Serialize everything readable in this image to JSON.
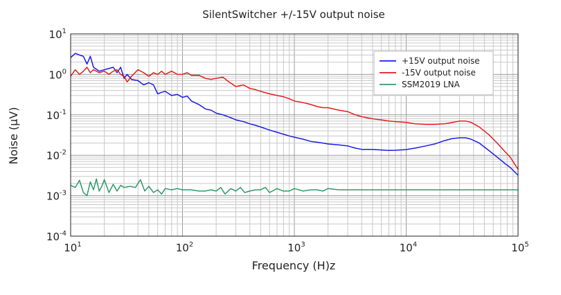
{
  "chart_data": {
    "type": "line",
    "title": "SilentSwitcher +/-15V output noise",
    "xlabel": "Frequency (H)z",
    "ylabel": "Noise (µV)",
    "xscale": "log",
    "yscale": "log",
    "xlim": [
      10,
      100000
    ],
    "ylim": [
      0.0001,
      10
    ],
    "x_tick_labels": [
      {
        "value": 10,
        "base": "10",
        "exp": "1"
      },
      {
        "value": 100,
        "base": "10",
        "exp": "2"
      },
      {
        "value": 1000,
        "base": "10",
        "exp": "3"
      },
      {
        "value": 10000,
        "base": "10",
        "exp": "4"
      },
      {
        "value": 100000,
        "base": "10",
        "exp": "5"
      }
    ],
    "y_tick_labels": [
      {
        "value": 10,
        "base": "10",
        "exp": "1"
      },
      {
        "value": 1,
        "base": "10",
        "exp": "0"
      },
      {
        "value": 0.1,
        "base": "10",
        "exp": "-1"
      },
      {
        "value": 0.01,
        "base": "10",
        "exp": "-2"
      },
      {
        "value": 0.001,
        "base": "10",
        "exp": "-3"
      },
      {
        "value": 0.0001,
        "base": "10",
        "exp": "-4"
      }
    ],
    "grid": true,
    "legend_position": "top-right",
    "series": [
      {
        "name": "+15V output noise",
        "color": "#1a1ae6",
        "points": [
          [
            10,
            2.6
          ],
          [
            11,
            3.3
          ],
          [
            12,
            3.0
          ],
          [
            13,
            2.8
          ],
          [
            14,
            1.8
          ],
          [
            15,
            2.8
          ],
          [
            16,
            1.5
          ],
          [
            18,
            1.2
          ],
          [
            20,
            1.3
          ],
          [
            22,
            1.4
          ],
          [
            24,
            1.5
          ],
          [
            26,
            1.1
          ],
          [
            28,
            1.5
          ],
          [
            30,
            0.8
          ],
          [
            32,
            1.0
          ],
          [
            35,
            0.75
          ],
          [
            40,
            0.7
          ],
          [
            45,
            0.55
          ],
          [
            50,
            0.62
          ],
          [
            55,
            0.55
          ],
          [
            60,
            0.33
          ],
          [
            65,
            0.36
          ],
          [
            70,
            0.38
          ],
          [
            80,
            0.3
          ],
          [
            90,
            0.32
          ],
          [
            100,
            0.27
          ],
          [
            110,
            0.29
          ],
          [
            120,
            0.22
          ],
          [
            140,
            0.18
          ],
          [
            160,
            0.14
          ],
          [
            180,
            0.13
          ],
          [
            200,
            0.11
          ],
          [
            230,
            0.1
          ],
          [
            270,
            0.085
          ],
          [
            300,
            0.075
          ],
          [
            350,
            0.068
          ],
          [
            400,
            0.06
          ],
          [
            450,
            0.055
          ],
          [
            500,
            0.05
          ],
          [
            600,
            0.042
          ],
          [
            700,
            0.037
          ],
          [
            800,
            0.033
          ],
          [
            900,
            0.03
          ],
          [
            1000,
            0.028
          ],
          [
            1200,
            0.025
          ],
          [
            1400,
            0.022
          ],
          [
            1600,
            0.021
          ],
          [
            1800,
            0.02
          ],
          [
            2000,
            0.019
          ],
          [
            2500,
            0.018
          ],
          [
            3000,
            0.017
          ],
          [
            3500,
            0.015
          ],
          [
            4000,
            0.014
          ],
          [
            5000,
            0.014
          ],
          [
            6000,
            0.0135
          ],
          [
            7000,
            0.0132
          ],
          [
            8000,
            0.0133
          ],
          [
            10000,
            0.0138
          ],
          [
            12000,
            0.015
          ],
          [
            15000,
            0.017
          ],
          [
            18000,
            0.019
          ],
          [
            22000,
            0.023
          ],
          [
            26000,
            0.026
          ],
          [
            30000,
            0.027
          ],
          [
            34000,
            0.027
          ],
          [
            38000,
            0.025
          ],
          [
            45000,
            0.02
          ],
          [
            55000,
            0.013
          ],
          [
            65000,
            0.009
          ],
          [
            75000,
            0.0065
          ],
          [
            85000,
            0.005
          ],
          [
            100000,
            0.0032
          ]
        ]
      },
      {
        "name": "-15V output noise",
        "color": "#e61a1a",
        "points": [
          [
            10,
            0.9
          ],
          [
            11,
            1.3
          ],
          [
            12,
            1.0
          ],
          [
            13,
            1.2
          ],
          [
            14,
            1.5
          ],
          [
            15,
            1.1
          ],
          [
            16,
            1.3
          ],
          [
            18,
            1.1
          ],
          [
            20,
            1.2
          ],
          [
            22,
            1.0
          ],
          [
            24,
            1.2
          ],
          [
            26,
            1.3
          ],
          [
            28,
            1.0
          ],
          [
            30,
            0.9
          ],
          [
            32,
            0.65
          ],
          [
            35,
            0.9
          ],
          [
            40,
            1.3
          ],
          [
            45,
            1.1
          ],
          [
            50,
            0.9
          ],
          [
            55,
            1.1
          ],
          [
            60,
            1.0
          ],
          [
            65,
            1.2
          ],
          [
            70,
            1.0
          ],
          [
            80,
            1.2
          ],
          [
            90,
            1.0
          ],
          [
            100,
            1.0
          ],
          [
            110,
            1.1
          ],
          [
            120,
            0.95
          ],
          [
            140,
            0.95
          ],
          [
            160,
            0.8
          ],
          [
            180,
            0.75
          ],
          [
            200,
            0.8
          ],
          [
            230,
            0.85
          ],
          [
            260,
            0.65
          ],
          [
            300,
            0.5
          ],
          [
            350,
            0.55
          ],
          [
            400,
            0.45
          ],
          [
            450,
            0.42
          ],
          [
            500,
            0.38
          ],
          [
            600,
            0.33
          ],
          [
            700,
            0.3
          ],
          [
            800,
            0.28
          ],
          [
            900,
            0.25
          ],
          [
            1000,
            0.22
          ],
          [
            1200,
            0.2
          ],
          [
            1400,
            0.18
          ],
          [
            1600,
            0.16
          ],
          [
            1800,
            0.15
          ],
          [
            2000,
            0.15
          ],
          [
            2500,
            0.13
          ],
          [
            3000,
            0.12
          ],
          [
            3500,
            0.1
          ],
          [
            4000,
            0.09
          ],
          [
            5000,
            0.08
          ],
          [
            6000,
            0.075
          ],
          [
            7000,
            0.07
          ],
          [
            8000,
            0.068
          ],
          [
            10000,
            0.065
          ],
          [
            12000,
            0.06
          ],
          [
            15000,
            0.058
          ],
          [
            18000,
            0.058
          ],
          [
            22000,
            0.06
          ],
          [
            26000,
            0.065
          ],
          [
            30000,
            0.07
          ],
          [
            34000,
            0.07
          ],
          [
            38000,
            0.065
          ],
          [
            45000,
            0.05
          ],
          [
            55000,
            0.032
          ],
          [
            65000,
            0.02
          ],
          [
            75000,
            0.013
          ],
          [
            85000,
            0.009
          ],
          [
            100000,
            0.0045
          ]
        ]
      },
      {
        "name": "SSM2019 LNA",
        "color": "#2e9a66",
        "points": [
          [
            10,
            0.0018
          ],
          [
            11,
            0.0016
          ],
          [
            12,
            0.0024
          ],
          [
            13,
            0.0012
          ],
          [
            14,
            0.001
          ],
          [
            15,
            0.0022
          ],
          [
            16,
            0.0014
          ],
          [
            17,
            0.0026
          ],
          [
            18,
            0.0013
          ],
          [
            19,
            0.0017
          ],
          [
            20,
            0.0025
          ],
          [
            22,
            0.0012
          ],
          [
            24,
            0.0019
          ],
          [
            26,
            0.0013
          ],
          [
            28,
            0.0018
          ],
          [
            30,
            0.0016
          ],
          [
            34,
            0.0017
          ],
          [
            38,
            0.0016
          ],
          [
            42,
            0.0025
          ],
          [
            46,
            0.0013
          ],
          [
            50,
            0.0017
          ],
          [
            55,
            0.0012
          ],
          [
            60,
            0.0014
          ],
          [
            65,
            0.0011
          ],
          [
            70,
            0.0015
          ],
          [
            80,
            0.0014
          ],
          [
            90,
            0.0015
          ],
          [
            100,
            0.0014
          ],
          [
            120,
            0.0014
          ],
          [
            140,
            0.0013
          ],
          [
            160,
            0.0013
          ],
          [
            180,
            0.0014
          ],
          [
            200,
            0.0013
          ],
          [
            220,
            0.0016
          ],
          [
            240,
            0.0011
          ],
          [
            270,
            0.0015
          ],
          [
            300,
            0.0013
          ],
          [
            330,
            0.0016
          ],
          [
            360,
            0.0012
          ],
          [
            400,
            0.0013
          ],
          [
            450,
            0.0014
          ],
          [
            500,
            0.0014
          ],
          [
            550,
            0.0016
          ],
          [
            600,
            0.0012
          ],
          [
            700,
            0.0015
          ],
          [
            800,
            0.0013
          ],
          [
            900,
            0.0013
          ],
          [
            1000,
            0.0015
          ],
          [
            1200,
            0.0013
          ],
          [
            1400,
            0.0014
          ],
          [
            1600,
            0.0014
          ],
          [
            1800,
            0.0013
          ],
          [
            2000,
            0.0015
          ],
          [
            2500,
            0.0014
          ],
          [
            3000,
            0.0014
          ],
          [
            4000,
            0.0014
          ],
          [
            5000,
            0.0014
          ],
          [
            6000,
            0.0014
          ],
          [
            8000,
            0.0014
          ],
          [
            10000,
            0.0014
          ],
          [
            15000,
            0.0014
          ],
          [
            20000,
            0.0014
          ],
          [
            30000,
            0.0014
          ],
          [
            40000,
            0.0014
          ],
          [
            60000,
            0.0014
          ],
          [
            80000,
            0.0014
          ],
          [
            100000,
            0.0014
          ]
        ]
      }
    ]
  }
}
